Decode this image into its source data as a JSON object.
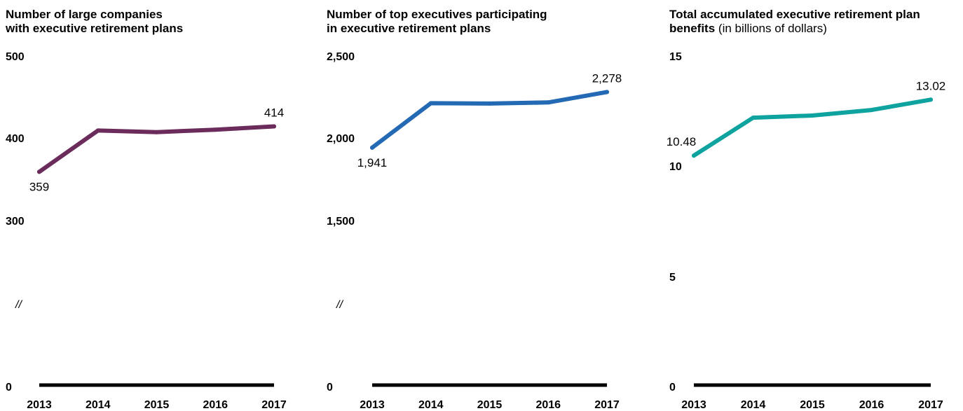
{
  "chart_data": [
    {
      "type": "line",
      "title": "Number of large companies",
      "title_line2": "with executive retirement plans",
      "subtitle": "",
      "x": [
        "2013",
        "2014",
        "2015",
        "2016",
        "2017"
      ],
      "series": [
        {
          "values": [
            359,
            409,
            407,
            410,
            414
          ],
          "color": "#6b2c5c"
        }
      ],
      "y_ticks": [
        "500",
        "400",
        "300",
        "0"
      ],
      "ylim": [
        0,
        500
      ],
      "axis_break": true,
      "axis_break_label": "//",
      "data_labels": [
        {
          "index": 0,
          "text": "359",
          "position": "below"
        },
        {
          "index": 4,
          "text": "414",
          "position": "above"
        }
      ],
      "grid": false
    },
    {
      "type": "line",
      "title": "Number of top executives participating",
      "title_line2": "in executive retirement plans",
      "subtitle": "",
      "x": [
        "2013",
        "2014",
        "2015",
        "2016",
        "2017"
      ],
      "series": [
        {
          "values": [
            1941,
            2210,
            2208,
            2215,
            2278
          ],
          "color": "#2469b3"
        }
      ],
      "y_ticks": [
        "2,500",
        "2,000",
        "1,500",
        "0"
      ],
      "ylim": [
        0,
        2500
      ],
      "axis_break": true,
      "axis_break_label": "//",
      "data_labels": [
        {
          "index": 0,
          "text": "1,941",
          "position": "below"
        },
        {
          "index": 4,
          "text": "2,278",
          "position": "above"
        }
      ],
      "grid": false
    },
    {
      "type": "line",
      "title": "Total accumulated executive retirement plan",
      "title_line2": "benefits",
      "subtitle": "(in billions of dollars)",
      "x": [
        "2013",
        "2014",
        "2015",
        "2016",
        "2017"
      ],
      "series": [
        {
          "values": [
            10.48,
            12.2,
            12.3,
            12.55,
            13.02
          ],
          "color": "#0fa3a0"
        }
      ],
      "y_ticks": [
        "15",
        "10",
        "5",
        "0"
      ],
      "ylim": [
        0,
        15
      ],
      "axis_break": false,
      "data_labels": [
        {
          "index": 0,
          "text": "10.48",
          "position": "above"
        },
        {
          "index": 4,
          "text": "13.02",
          "position": "above"
        }
      ],
      "grid": false
    }
  ]
}
